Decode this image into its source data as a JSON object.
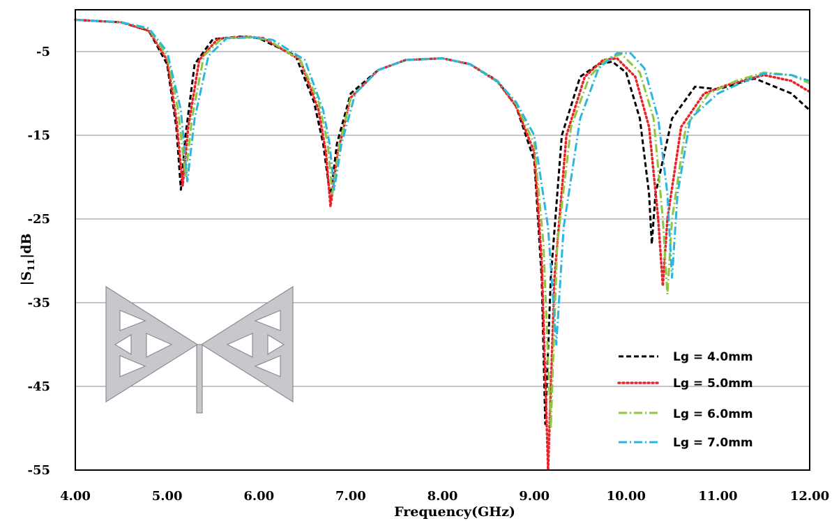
{
  "chart_data": {
    "type": "line",
    "xlabel": "Frequency(GHz)",
    "ylabel_main": "|S",
    "ylabel_sub": "11",
    "ylabel_tail": "|dB",
    "xlim": [
      4,
      12
    ],
    "ylim": [
      -55,
      0
    ],
    "x_ticks": [
      "4.00",
      "5.00",
      "6.00",
      "7.00",
      "8.00",
      "9.00",
      "10.00",
      "11.00",
      "12.00"
    ],
    "y_ticks": [
      "-5",
      "-15",
      "-25",
      "-35",
      "-45",
      "-55"
    ],
    "grid": "horizontal",
    "legend_position": "bottom-right",
    "series": [
      {
        "name": "Lg = 4.0mm",
        "color": "#000000",
        "dash": "7,4",
        "points": [
          [
            4.0,
            -1.2
          ],
          [
            4.5,
            -1.5
          ],
          [
            4.8,
            -2.5
          ],
          [
            5.0,
            -6.5
          ],
          [
            5.1,
            -14
          ],
          [
            5.15,
            -21.5
          ],
          [
            5.2,
            -15
          ],
          [
            5.3,
            -6.5
          ],
          [
            5.5,
            -3.5
          ],
          [
            5.8,
            -3.2
          ],
          [
            6.0,
            -3.4
          ],
          [
            6.4,
            -5.5
          ],
          [
            6.6,
            -11
          ],
          [
            6.7,
            -16
          ],
          [
            6.78,
            -22.5
          ],
          [
            6.85,
            -16
          ],
          [
            7.0,
            -10
          ],
          [
            7.3,
            -7.2
          ],
          [
            7.6,
            -6.0
          ],
          [
            8.0,
            -5.8
          ],
          [
            8.3,
            -6.5
          ],
          [
            8.6,
            -8.5
          ],
          [
            8.8,
            -11.5
          ],
          [
            9.0,
            -18
          ],
          [
            9.08,
            -32
          ],
          [
            9.12,
            -49.5
          ],
          [
            9.18,
            -32
          ],
          [
            9.3,
            -15
          ],
          [
            9.5,
            -8
          ],
          [
            9.7,
            -6.5
          ],
          [
            9.85,
            -6.2
          ],
          [
            10.0,
            -7.5
          ],
          [
            10.15,
            -13
          ],
          [
            10.25,
            -22
          ],
          [
            10.28,
            -28
          ],
          [
            10.32,
            -22
          ],
          [
            10.5,
            -13
          ],
          [
            10.75,
            -9.2
          ],
          [
            11.0,
            -9.5
          ],
          [
            11.4,
            -8.2
          ],
          [
            11.8,
            -10
          ],
          [
            12.0,
            -12
          ]
        ]
      },
      {
        "name": "Lg = 5.0mm",
        "color": "#e8232a",
        "dash": "2,4",
        "points": [
          [
            4.0,
            -1.2
          ],
          [
            4.5,
            -1.5
          ],
          [
            4.8,
            -2.5
          ],
          [
            5.0,
            -6
          ],
          [
            5.1,
            -13
          ],
          [
            5.17,
            -21
          ],
          [
            5.23,
            -14
          ],
          [
            5.35,
            -6
          ],
          [
            5.55,
            -3.5
          ],
          [
            5.85,
            -3.2
          ],
          [
            6.05,
            -3.4
          ],
          [
            6.45,
            -6
          ],
          [
            6.65,
            -12
          ],
          [
            6.73,
            -17
          ],
          [
            6.78,
            -23.5
          ],
          [
            6.86,
            -17
          ],
          [
            7.0,
            -10.5
          ],
          [
            7.3,
            -7.2
          ],
          [
            7.6,
            -6.0
          ],
          [
            8.0,
            -5.8
          ],
          [
            8.3,
            -6.5
          ],
          [
            8.6,
            -8.6
          ],
          [
            8.8,
            -11.5
          ],
          [
            9.0,
            -17
          ],
          [
            9.08,
            -30
          ],
          [
            9.15,
            -55
          ],
          [
            9.22,
            -32
          ],
          [
            9.35,
            -15
          ],
          [
            9.55,
            -8
          ],
          [
            9.75,
            -6
          ],
          [
            9.9,
            -5.8
          ],
          [
            10.1,
            -8
          ],
          [
            10.25,
            -14
          ],
          [
            10.35,
            -25
          ],
          [
            10.4,
            -33
          ],
          [
            10.45,
            -25
          ],
          [
            10.6,
            -14
          ],
          [
            10.85,
            -10
          ],
          [
            11.1,
            -9
          ],
          [
            11.5,
            -7.8
          ],
          [
            11.8,
            -8.5
          ],
          [
            12.0,
            -9.8
          ]
        ]
      },
      {
        "name": "Lg = 6.0mm",
        "color": "#8dc63f",
        "dash": "12,4,2,4",
        "points": [
          [
            4.0,
            -1.2
          ],
          [
            4.5,
            -1.5
          ],
          [
            4.8,
            -2.3
          ],
          [
            5.0,
            -5.5
          ],
          [
            5.12,
            -12
          ],
          [
            5.2,
            -20
          ],
          [
            5.27,
            -13
          ],
          [
            5.4,
            -5.5
          ],
          [
            5.6,
            -3.4
          ],
          [
            5.9,
            -3.3
          ],
          [
            6.1,
            -3.6
          ],
          [
            6.45,
            -6
          ],
          [
            6.65,
            -11
          ],
          [
            6.75,
            -16
          ],
          [
            6.8,
            -22
          ],
          [
            6.88,
            -16
          ],
          [
            7.0,
            -10.5
          ],
          [
            7.3,
            -7.2
          ],
          [
            7.6,
            -6.0
          ],
          [
            8.0,
            -5.8
          ],
          [
            8.3,
            -6.5
          ],
          [
            8.6,
            -8.5
          ],
          [
            8.8,
            -11.2
          ],
          [
            9.0,
            -16
          ],
          [
            9.1,
            -28
          ],
          [
            9.18,
            -50
          ],
          [
            9.25,
            -28
          ],
          [
            9.4,
            -14
          ],
          [
            9.6,
            -8
          ],
          [
            9.8,
            -5.8
          ],
          [
            9.95,
            -5.3
          ],
          [
            10.15,
            -7.5
          ],
          [
            10.3,
            -13
          ],
          [
            10.4,
            -25
          ],
          [
            10.45,
            -34
          ],
          [
            10.5,
            -25
          ],
          [
            10.65,
            -14
          ],
          [
            10.9,
            -10
          ],
          [
            11.2,
            -8.5
          ],
          [
            11.5,
            -7.5
          ],
          [
            11.8,
            -7.8
          ],
          [
            12.0,
            -8.8
          ]
        ]
      },
      {
        "name": "Lg = 7.0mm",
        "color": "#29b6e0",
        "dash": "12,4,2,4",
        "points": [
          [
            4.0,
            -1.2
          ],
          [
            4.5,
            -1.5
          ],
          [
            4.8,
            -2.2
          ],
          [
            5.0,
            -5
          ],
          [
            5.15,
            -12
          ],
          [
            5.22,
            -20.5
          ],
          [
            5.3,
            -13
          ],
          [
            5.45,
            -5.5
          ],
          [
            5.65,
            -3.4
          ],
          [
            5.95,
            -3.3
          ],
          [
            6.15,
            -3.6
          ],
          [
            6.5,
            -6
          ],
          [
            6.7,
            -12
          ],
          [
            6.77,
            -16
          ],
          [
            6.82,
            -21.5
          ],
          [
            6.9,
            -16
          ],
          [
            7.05,
            -10
          ],
          [
            7.3,
            -7.2
          ],
          [
            7.6,
            -6.0
          ],
          [
            8.0,
            -5.8
          ],
          [
            8.3,
            -6.5
          ],
          [
            8.6,
            -8.6
          ],
          [
            8.8,
            -11
          ],
          [
            9.0,
            -15
          ],
          [
            9.15,
            -26
          ],
          [
            9.24,
            -40
          ],
          [
            9.32,
            -26
          ],
          [
            9.5,
            -13
          ],
          [
            9.7,
            -7
          ],
          [
            9.9,
            -5.2
          ],
          [
            10.05,
            -5.2
          ],
          [
            10.2,
            -7
          ],
          [
            10.35,
            -13
          ],
          [
            10.45,
            -22
          ],
          [
            10.5,
            -32
          ],
          [
            10.56,
            -22
          ],
          [
            10.7,
            -13
          ],
          [
            11.0,
            -10
          ],
          [
            11.2,
            -9
          ],
          [
            11.5,
            -7.6
          ],
          [
            11.8,
            -7.8
          ],
          [
            12.0,
            -8.5
          ]
        ]
      }
    ]
  }
}
